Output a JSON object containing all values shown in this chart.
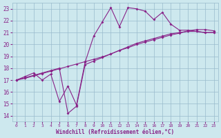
{
  "xlabel": "Windchill (Refroidissement éolien,°C)",
  "bg_color": "#cde8ee",
  "line_color": "#882288",
  "grid_color": "#99bbcc",
  "axis_label_color": "#882288",
  "tick_color": "#882288",
  "xlim": [
    -0.5,
    23.5
  ],
  "ylim": [
    13.5,
    23.5
  ],
  "xticks": [
    0,
    1,
    2,
    3,
    4,
    5,
    6,
    7,
    8,
    9,
    10,
    11,
    12,
    13,
    14,
    15,
    16,
    17,
    18,
    19,
    20,
    21,
    22,
    23
  ],
  "yticks": [
    14,
    15,
    16,
    17,
    18,
    19,
    20,
    21,
    22,
    23
  ],
  "line1_x": [
    0,
    1,
    2,
    3,
    4,
    5,
    6,
    7,
    8,
    9,
    10,
    11,
    12,
    13,
    14,
    15,
    16,
    17,
    18,
    19,
    20,
    21,
    22,
    23
  ],
  "line1_y": [
    17.0,
    17.3,
    17.6,
    17.0,
    17.5,
    15.2,
    16.5,
    14.9,
    18.5,
    20.7,
    21.9,
    23.1,
    21.5,
    23.1,
    23.0,
    22.8,
    22.1,
    22.7,
    21.7,
    21.2,
    21.2,
    21.1,
    21.0,
    21.0
  ],
  "line2_x": [
    0,
    1,
    2,
    3,
    4,
    5,
    6,
    7,
    8,
    9,
    10,
    11,
    12,
    13,
    14,
    15,
    16,
    17,
    18,
    19,
    20,
    21,
    22,
    23
  ],
  "line2_y": [
    17.0,
    17.2,
    17.4,
    17.6,
    17.8,
    18.0,
    14.2,
    14.8,
    18.3,
    18.6,
    18.9,
    19.2,
    19.5,
    19.8,
    20.1,
    20.3,
    20.5,
    20.7,
    20.9,
    21.0,
    21.1,
    21.1,
    21.0,
    21.0
  ],
  "line3_x": [
    0,
    1,
    2,
    3,
    4,
    5,
    6,
    7,
    8,
    9,
    10,
    11,
    12,
    13,
    14,
    15,
    16,
    17,
    18,
    19,
    20,
    21,
    22,
    23
  ],
  "line3_y": [
    17.0,
    17.15,
    17.35,
    17.55,
    17.75,
    17.95,
    18.15,
    18.35,
    18.55,
    18.75,
    18.95,
    19.2,
    19.5,
    19.72,
    20.0,
    20.2,
    20.4,
    20.6,
    20.8,
    20.95,
    21.15,
    21.25,
    21.25,
    21.15
  ]
}
